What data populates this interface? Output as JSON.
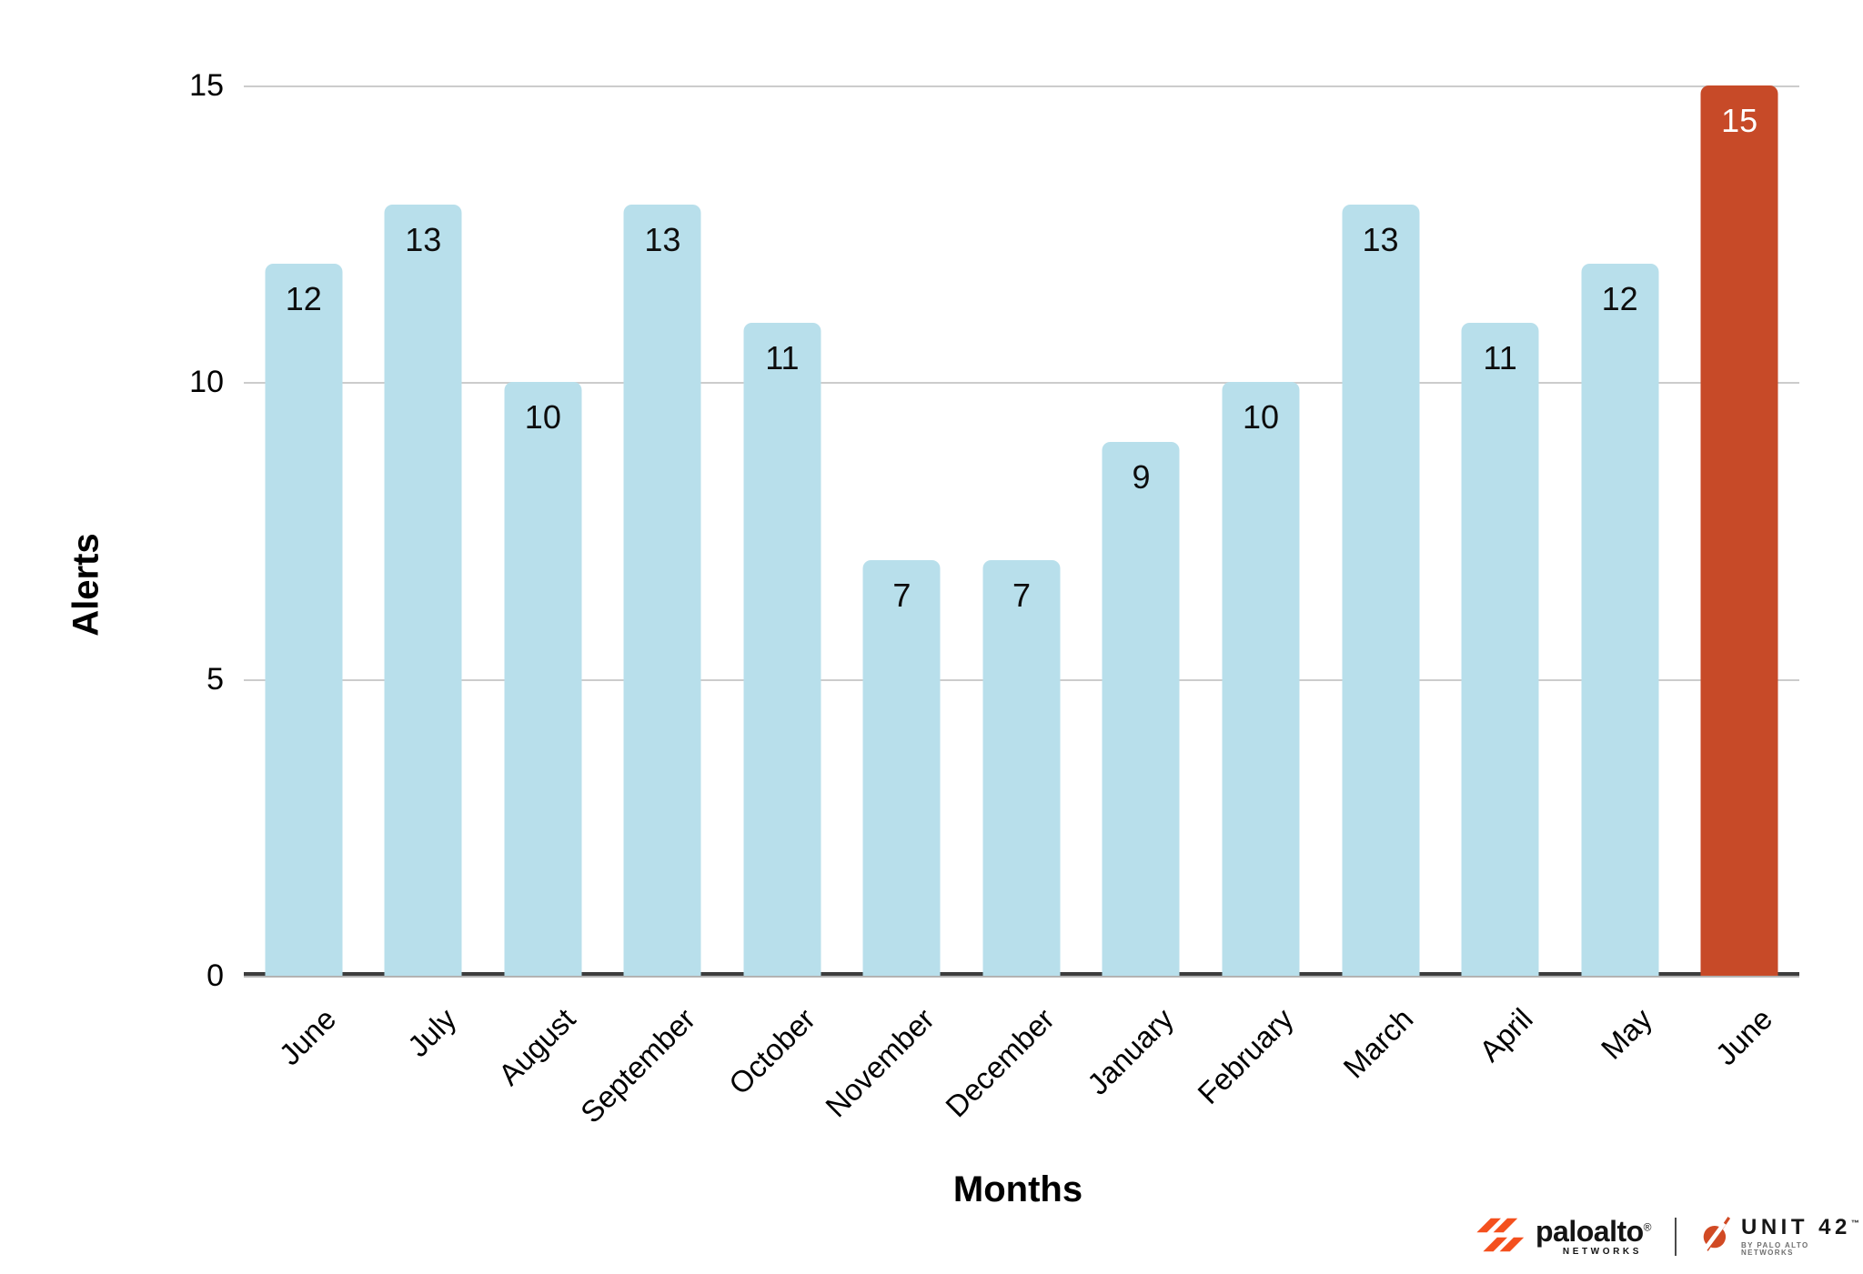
{
  "chart_data": {
    "type": "bar",
    "title": "",
    "categories": [
      "June",
      "July",
      "August",
      "September",
      "October",
      "November",
      "December",
      "January",
      "February",
      "March",
      "April",
      "May",
      "June"
    ],
    "values": [
      12,
      13,
      10,
      13,
      11,
      7,
      7,
      9,
      10,
      13,
      11,
      12,
      15
    ],
    "highlight_index": 12,
    "xlabel": "Months",
    "ylabel": "Alerts",
    "yticks": [
      0,
      5,
      10,
      15
    ],
    "ylim": [
      0,
      15
    ],
    "bar_color": "#b8dfeb",
    "highlight_color": "#c74a28",
    "value_label_color": "#0d0d0d",
    "highlight_value_label_color": "#ffffff",
    "gridline_color": "#cccccc",
    "grid": true,
    "legend": "none"
  },
  "branding": {
    "paloalto": {
      "word": "paloalto",
      "reg": "®",
      "sub": "NETWORKS"
    },
    "unit42": {
      "word": "UNIT 42",
      "tm": "™",
      "sub": "BY PALO ALTO NETWORKS"
    },
    "accent_orange": "#f4501e",
    "unit42_red": "#d14a24"
  }
}
